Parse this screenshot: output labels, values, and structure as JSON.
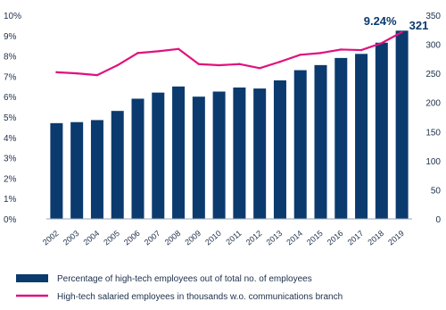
{
  "chart_data": {
    "type": "bar",
    "categories": [
      "2002",
      "2003",
      "2004",
      "2005",
      "2006",
      "2007",
      "2008",
      "2009",
      "2010",
      "2011",
      "2012",
      "2013",
      "2014",
      "2015",
      "2016",
      "2017",
      "2018",
      "2019"
    ],
    "series": [
      {
        "name": "Percentage of high-tech employees out of total no. of employees",
        "type": "bar",
        "axis": "left",
        "color": "#0b3a6e",
        "values": [
          4.7,
          4.75,
          4.85,
          5.3,
          5.9,
          6.2,
          6.5,
          6.0,
          6.25,
          6.45,
          6.4,
          6.8,
          7.3,
          7.55,
          7.9,
          8.1,
          8.65,
          9.24
        ]
      },
      {
        "name": "High-tech salaried employees in thousands w.o. communications branch",
        "type": "line",
        "axis": "right",
        "color": "#e0127d",
        "values": [
          252,
          250,
          247,
          264,
          285,
          288,
          292,
          266,
          264,
          266,
          259,
          270,
          282,
          285,
          291,
          290,
          302,
          321
        ]
      }
    ],
    "y_left": {
      "lim": [
        0,
        10
      ],
      "ticks": [
        0,
        1,
        2,
        3,
        4,
        5,
        6,
        7,
        8,
        9,
        10
      ],
      "tick_labels": [
        "0%",
        "1%",
        "2%",
        "3%",
        "4%",
        "5%",
        "6%",
        "7%",
        "8%",
        "9%",
        "10%"
      ]
    },
    "y_right": {
      "lim": [
        0,
        350
      ],
      "ticks": [
        0,
        50,
        100,
        150,
        200,
        250,
        300,
        350
      ],
      "tick_labels": [
        "0",
        "50",
        "100",
        "150",
        "200",
        "250",
        "300",
        "350"
      ]
    },
    "annotations": [
      "9.24%",
      "321"
    ],
    "grid": false,
    "legend_position": "bottom"
  }
}
